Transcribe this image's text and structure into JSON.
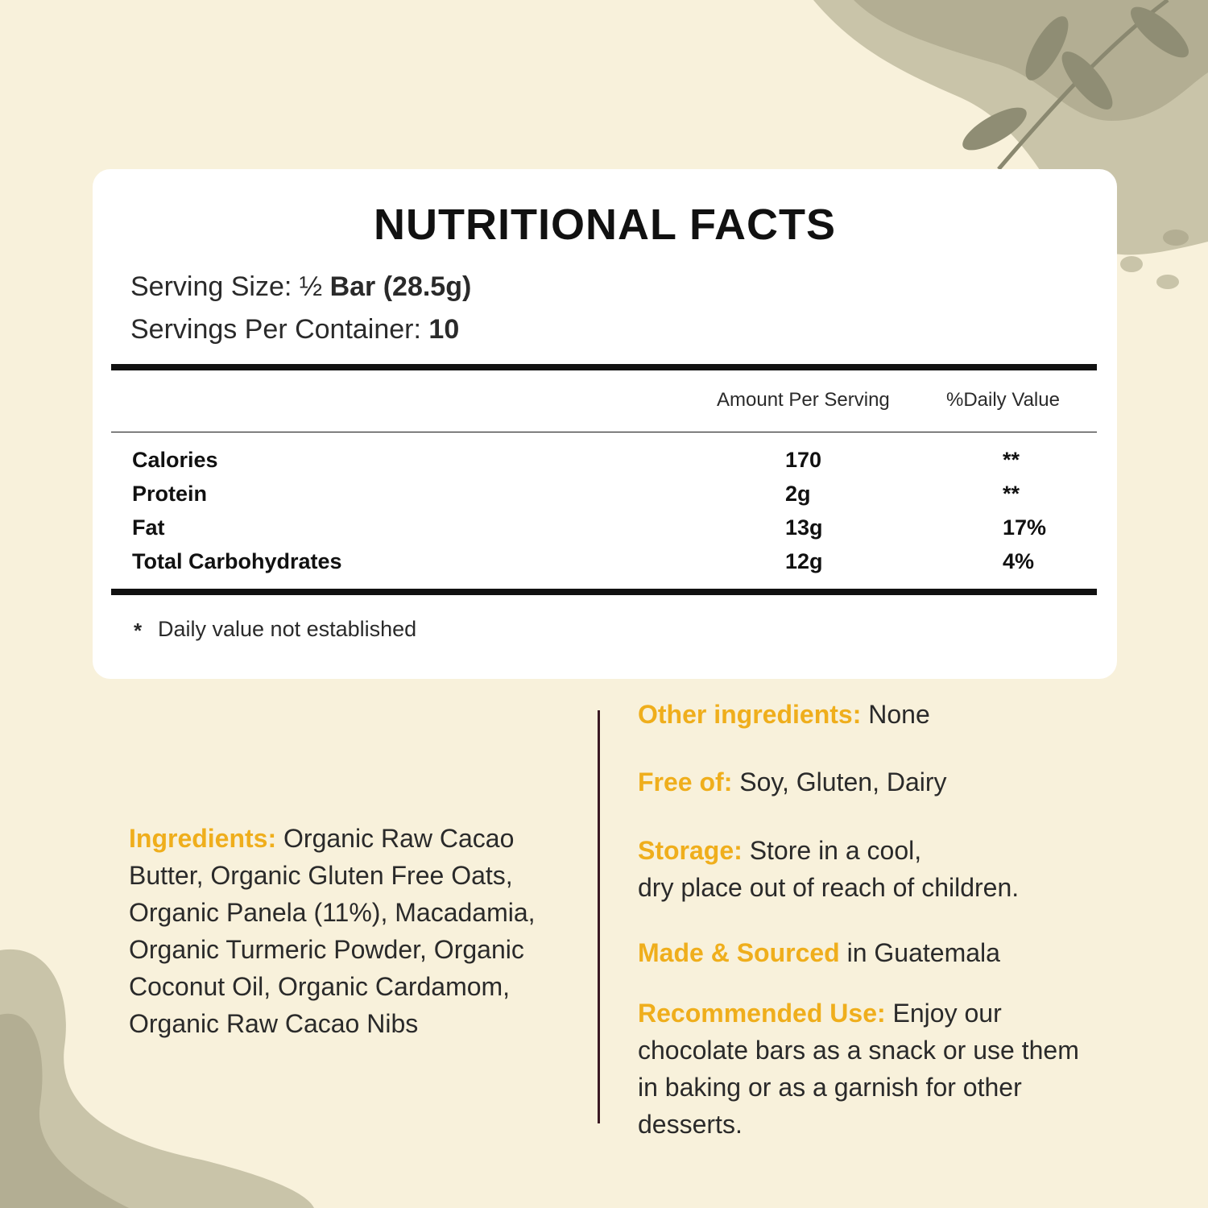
{
  "panel": {
    "title": "NUTRITIONAL FACTS",
    "serving_size": {
      "label": "Serving Size: ½",
      "value": "Bar (28.5g)"
    },
    "servings_per_container": {
      "label": "Servings Per Container:",
      "value": "10"
    },
    "table": {
      "headers": [
        "Amount Per Serving",
        "%Daily Value"
      ],
      "rows": [
        [
          "Calories",
          "170",
          "**"
        ],
        [
          "Protein",
          "2g",
          "**"
        ],
        [
          "Fat",
          "13g",
          "17%"
        ],
        [
          "Total Carbohydrates",
          "12g",
          "4%"
        ]
      ]
    },
    "footnote": {
      "marker": "*",
      "text": "Daily value not established"
    }
  },
  "ingredients": {
    "label": "Ingredients:",
    "text": "Organic Raw Cacao Butter, Organic Gluten Free Oats, Organic Panela (11%), Macadamia, Organic Turmeric Powder, Organic Coconut Oil, Organic Cardamom, Organic Raw Cacao Nibs"
  },
  "details": [
    {
      "label": "Other ingredients:",
      "lines": [
        "None"
      ]
    },
    {
      "label": "Free of:",
      "lines": [
        "Soy, Gluten, Dairy"
      ]
    },
    {
      "label": "Storage:",
      "lines": [
        "Store in a cool,",
        "dry place out of reach of children."
      ]
    },
    {
      "label": "Made & Sourced",
      "lines": [
        "in Guatemala"
      ]
    },
    {
      "label": "Recommended Use:",
      "lines": [
        "Enjoy our chocolate bars as a snack or use them in baking or as a garnish for other desserts."
      ]
    }
  ]
}
